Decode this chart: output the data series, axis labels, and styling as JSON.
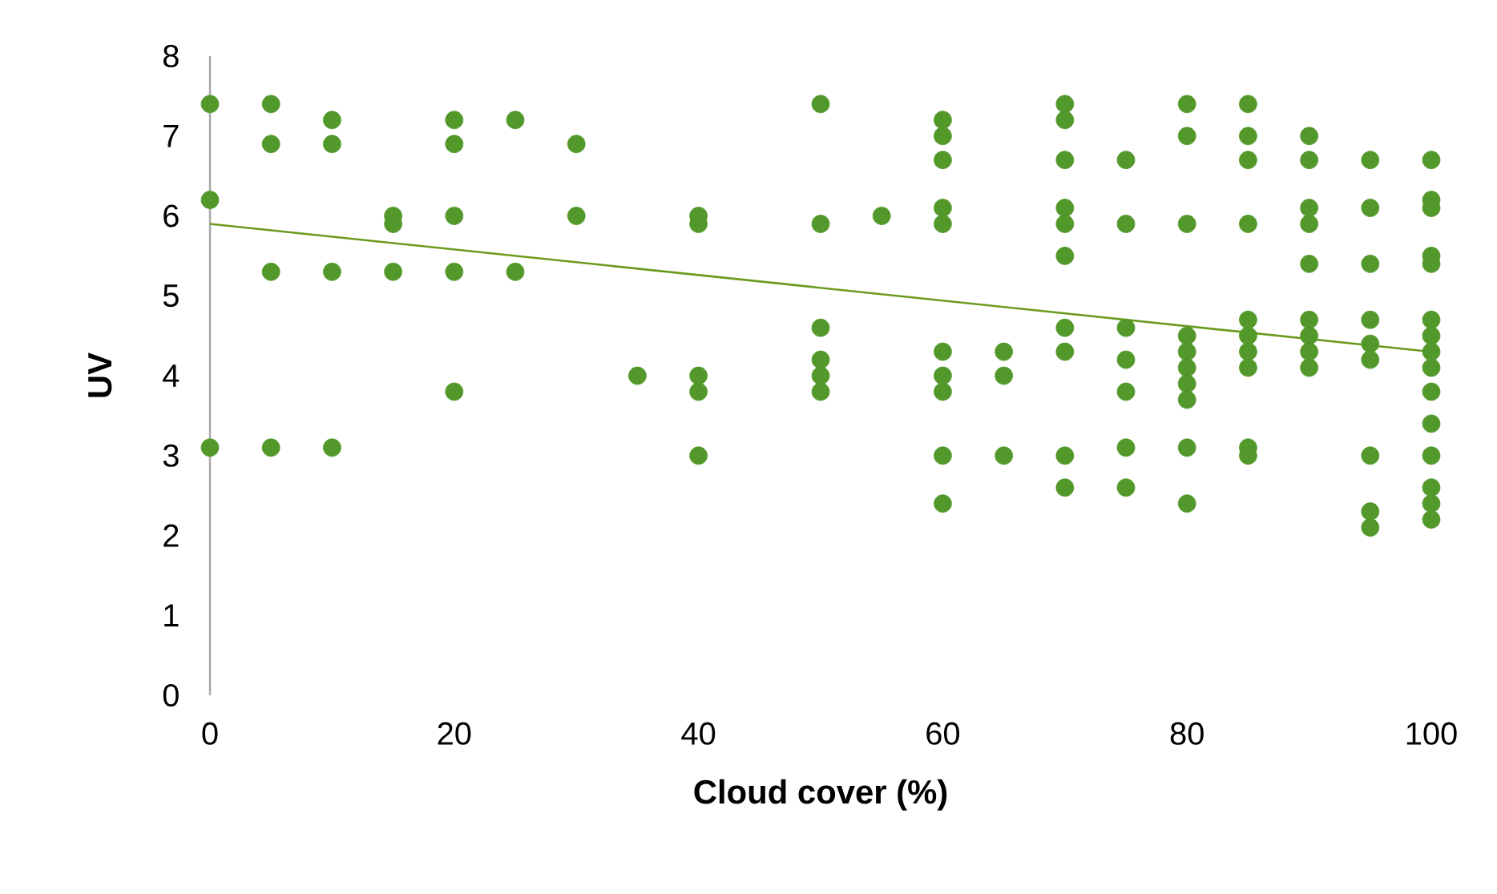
{
  "chart_data": {
    "type": "scatter",
    "xlabel": "Cloud cover (%)",
    "ylabel": "UV",
    "xlim": [
      0,
      100
    ],
    "ylim": [
      0,
      8
    ],
    "xticks": [
      0,
      20,
      40,
      60,
      80,
      100
    ],
    "yticks": [
      0,
      1,
      2,
      3,
      4,
      5,
      6,
      7,
      8
    ],
    "series": [
      {
        "color": "#52982a",
        "marker": "circle",
        "x": [
          0,
          0,
          0,
          5,
          5,
          5,
          5,
          10,
          10,
          10,
          10,
          15,
          15,
          15,
          20,
          20,
          20,
          20,
          20,
          25,
          25,
          30,
          30,
          35,
          40,
          40,
          40,
          40,
          40,
          50,
          50,
          50,
          50,
          50,
          50,
          55,
          60,
          60,
          60,
          60,
          60,
          60,
          60,
          60,
          60,
          60,
          65,
          65,
          65,
          70,
          70,
          70,
          70,
          70,
          70,
          70,
          70,
          70,
          70,
          75,
          75,
          75,
          75,
          75,
          75,
          75,
          80,
          80,
          80,
          80,
          80,
          80,
          80,
          80,
          80,
          80,
          85,
          85,
          85,
          85,
          85,
          85,
          85,
          85,
          85,
          85,
          90,
          90,
          90,
          90,
          90,
          90,
          90,
          90,
          90,
          95,
          95,
          95,
          95,
          95,
          95,
          95,
          95,
          95,
          100,
          100,
          100,
          100,
          100,
          100,
          100,
          100,
          100,
          100,
          100,
          100,
          100,
          100,
          100
        ],
        "values": [
          7.4,
          6.2,
          3.1,
          7.4,
          6.9,
          5.3,
          3.1,
          7.2,
          6.9,
          5.3,
          3.1,
          6.0,
          5.9,
          5.3,
          7.2,
          6.9,
          6.0,
          5.3,
          3.8,
          7.2,
          5.3,
          6.9,
          6.0,
          4.0,
          6.0,
          5.9,
          4.0,
          3.8,
          3.0,
          7.4,
          5.9,
          4.6,
          4.2,
          4.0,
          3.8,
          6.0,
          7.2,
          7.0,
          6.7,
          6.1,
          5.9,
          4.3,
          4.0,
          3.8,
          3.0,
          2.4,
          4.3,
          4.0,
          3.0,
          7.4,
          7.2,
          6.7,
          6.1,
          5.9,
          5.5,
          4.6,
          4.3,
          3.0,
          2.6,
          6.7,
          5.9,
          4.6,
          4.2,
          3.8,
          3.1,
          2.6,
          7.4,
          7.0,
          5.9,
          4.5,
          4.3,
          4.1,
          3.9,
          3.7,
          3.1,
          2.4,
          7.4,
          7.0,
          6.7,
          5.9,
          4.7,
          4.5,
          4.3,
          4.1,
          3.1,
          3.0,
          7.0,
          6.7,
          6.1,
          5.9,
          5.4,
          4.7,
          4.5,
          4.3,
          4.1,
          6.7,
          6.1,
          5.4,
          4.7,
          4.4,
          4.2,
          3.0,
          2.3,
          2.1,
          6.7,
          6.2,
          6.1,
          5.5,
          5.4,
          4.7,
          4.5,
          4.3,
          4.1,
          3.8,
          3.4,
          3.0,
          2.6,
          2.4,
          2.2
        ]
      },
      {
        "type": "line",
        "color": "#6b9a1e",
        "marker": "none",
        "line_style": "solid",
        "x": [
          0,
          100
        ],
        "values": [
          5.9,
          4.3
        ]
      }
    ]
  }
}
